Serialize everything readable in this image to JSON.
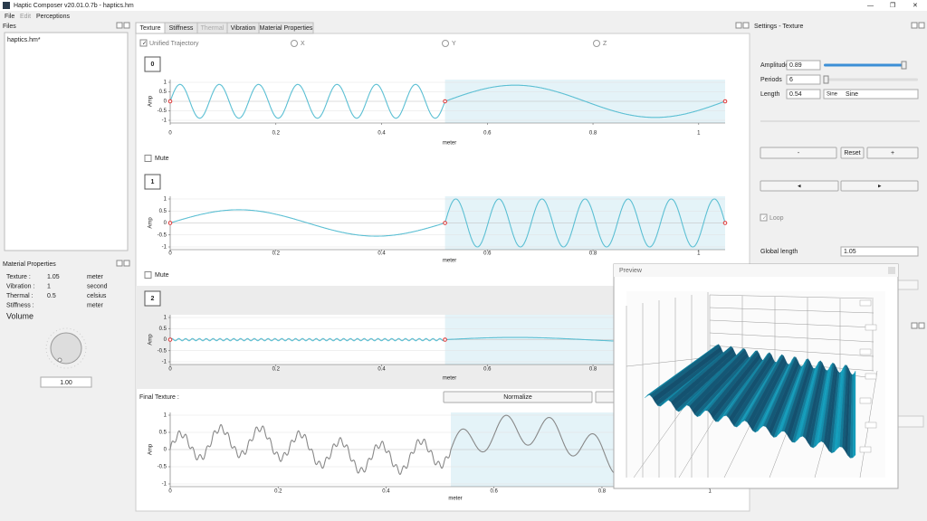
{
  "window": {
    "title": "Haptic Composer v20.01.0.7b - haptics.hm"
  },
  "menu": [
    "File",
    "Edit",
    "Perceptions"
  ],
  "files": {
    "title": "Files",
    "items": [
      "haptics.hm*"
    ]
  },
  "material_properties": {
    "title": "Material Properties",
    "rows": [
      {
        "label": "Texture :",
        "value": "1.05",
        "unit": "meter"
      },
      {
        "label": "Vibration :",
        "value": "1",
        "unit": "second"
      },
      {
        "label": "Thermal :",
        "value": "0.5",
        "unit": "celsius"
      },
      {
        "label": "Stiffness :",
        "unit": "meter"
      }
    ]
  },
  "volume": {
    "label": "Volume",
    "value": "1.00"
  },
  "tabs": [
    "Texture",
    "Stiffness",
    "Thermal",
    "Vibration",
    "Material Properties"
  ],
  "trajectory": {
    "unified": "Unified Trajectory",
    "axes": [
      "X",
      "Y",
      "Z"
    ]
  },
  "tracks": [
    {
      "id": "0",
      "mute": "Mute"
    },
    {
      "id": "1",
      "mute": "Mute"
    },
    {
      "id": "2"
    }
  ],
  "plot_axes": {
    "y_label": "Amp",
    "x_label": "meter",
    "ylim": [
      -1,
      1
    ],
    "xlim": [
      0,
      1.05
    ],
    "yticks": [
      -1,
      -0.5,
      0,
      0.5,
      1
    ],
    "xticks": [
      0,
      0.2,
      0.4,
      0.6,
      0.8,
      1
    ]
  },
  "final_texture": {
    "label": "Final Texture :",
    "button": "Normalize"
  },
  "settings": {
    "title": "Settings - Texture",
    "amplitude": {
      "label": "Amplitude",
      "value": "0.89"
    },
    "periods": {
      "label": "Periods",
      "value": "6"
    },
    "length": {
      "label": "Length",
      "value": "0.54",
      "waveform": "Sine"
    },
    "buttons": [
      "-",
      "Reset",
      "+"
    ],
    "loop": "Loop",
    "global_length": {
      "label": "Global length",
      "value": "1.05"
    }
  },
  "preview": {
    "title": "Preview"
  }
}
